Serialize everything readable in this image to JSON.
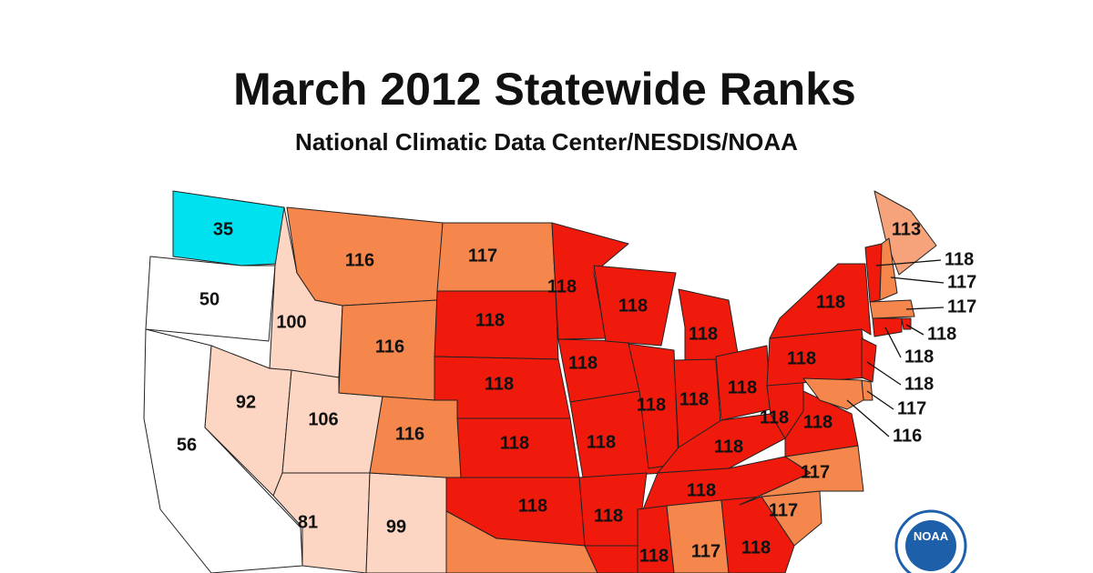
{
  "title": "March 2012 Statewide Ranks",
  "subtitle": "National Climatic Data Center/NESDIS/NOAA",
  "logo": "NOAA",
  "regions": [
    {
      "value": 35,
      "color": "#00e1f0"
    },
    {
      "value": 50,
      "color": "#ffffff"
    },
    {
      "value": 56,
      "color": "#ffffff"
    },
    {
      "value": 100,
      "color": "#fcd6c2"
    },
    {
      "value": 92,
      "color": "#fcd6c2"
    },
    {
      "value": 106,
      "color": "#fcd6c2"
    },
    {
      "value": 81,
      "color": "#fcd6c2"
    },
    {
      "value": 99,
      "color": "#fcd6c2"
    },
    {
      "value": 116,
      "color": "#f5874c"
    },
    {
      "value": 116,
      "color": "#f5874c"
    },
    {
      "value": 116,
      "color": "#f5874c"
    },
    {
      "value": 117,
      "color": "#f5874c"
    },
    {
      "value": 118,
      "color": "#f01a0c"
    },
    {
      "value": 118,
      "color": "#f01a0c"
    },
    {
      "value": 118,
      "color": "#f01a0c"
    },
    {
      "value": 118,
      "color": "#f01a0c"
    },
    {
      "value": null,
      "color": "#f5874c"
    },
    {
      "value": 118,
      "color": "#f01a0c"
    },
    {
      "value": 118,
      "color": "#f01a0c"
    },
    {
      "value": 118,
      "color": "#f01a0c"
    },
    {
      "value": 118,
      "color": "#f01a0c"
    },
    {
      "value": null,
      "color": "#f01a0c"
    },
    {
      "value": 118,
      "color": "#f01a0c"
    },
    {
      "value": 118,
      "color": "#f01a0c"
    },
    {
      "value": 118,
      "color": "#f01a0c"
    },
    {
      "value": 118,
      "color": "#f01a0c"
    },
    {
      "value": 118,
      "color": "#f01a0c"
    },
    {
      "value": 118,
      "color": "#f01a0c"
    },
    {
      "value": 118,
      "color": "#f01a0c"
    },
    {
      "value": 118,
      "color": "#f01a0c"
    },
    {
      "value": 117,
      "color": "#f5874c"
    },
    {
      "value": 118,
      "color": "#f01a0c"
    },
    {
      "value": 117,
      "color": "#f5874c"
    },
    {
      "value": 117,
      "color": "#f5874c"
    },
    {
      "value": 118,
      "color": "#f01a0c"
    },
    {
      "value": 118,
      "color": "#f01a0c"
    },
    {
      "value": 118,
      "color": "#f01a0c"
    },
    {
      "value": 118,
      "color": "#f01a0c"
    },
    {
      "value": 113,
      "color": "#f6a27a"
    },
    {
      "value": 118,
      "color": "#f01a0c"
    },
    {
      "value": 117,
      "color": "#f5874c"
    },
    {
      "value": 117,
      "color": "#f5874c"
    },
    {
      "value": 118,
      "color": "#f01a0c"
    },
    {
      "value": 118,
      "color": "#f01a0c"
    },
    {
      "value": 118,
      "color": "#f01a0c"
    },
    {
      "value": 117,
      "color": "#f5874c"
    },
    {
      "value": 116,
      "color": "#f5874c"
    }
  ]
}
